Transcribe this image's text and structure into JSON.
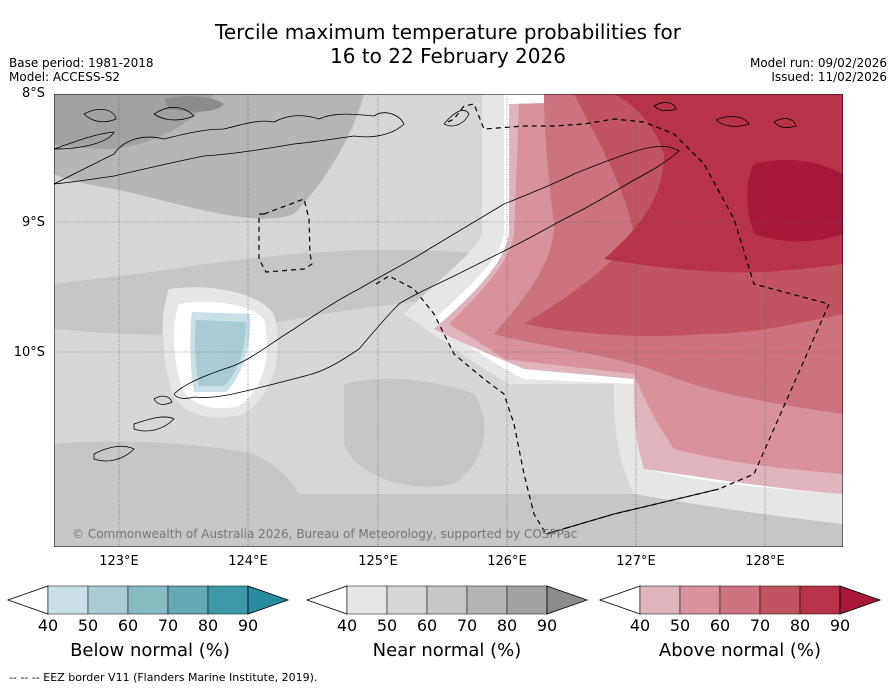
{
  "title": {
    "line1": "Tercile maximum temperature probabilities for",
    "line2": "16 to 22 February 2026"
  },
  "meta": {
    "base_period": "Base period: 1981-2018",
    "model": "Model: ACCESS-S2",
    "model_run": "Model run: 09/02/2026",
    "issued": "Issued: 11/02/2026"
  },
  "axes": {
    "lat_labels": [
      "8°S",
      "9°S",
      "10°S"
    ],
    "lon_labels": [
      "123°E",
      "124°E",
      "125°E",
      "126°E",
      "127°E",
      "128°E"
    ]
  },
  "copyright": "© Commonwealth of Australia 2026, Bureau of Meteorology, supported by COSPPac",
  "colorbars": [
    {
      "name": "below-normal",
      "title": "Below normal (%)",
      "ticks": [
        "40",
        "50",
        "60",
        "70",
        "80",
        "90"
      ],
      "colors": [
        "#c8e0e6",
        "#a8ccd2",
        "#88bac2",
        "#66a8b4",
        "#3e98a8",
        "#2a8a9e"
      ]
    },
    {
      "name": "near-normal",
      "title": "Near normal (%)",
      "ticks": [
        "40",
        "50",
        "60",
        "70",
        "80",
        "90"
      ],
      "colors": [
        "#e6e6e6",
        "#d6d6d6",
        "#c6c6c6",
        "#b4b4b4",
        "#a2a2a2",
        "#8c8c8c"
      ]
    },
    {
      "name": "above-normal",
      "title": "Above normal (%)",
      "ticks": [
        "40",
        "50",
        "60",
        "70",
        "80",
        "90"
      ],
      "colors": [
        "#e0b4bc",
        "#d8929e",
        "#cc7280",
        "#c05462",
        "#b8334a",
        "#a8183a"
      ]
    }
  ],
  "footer": "--  --  -- EEZ border V11 (Flanders Marine Institute, 2019)."
}
